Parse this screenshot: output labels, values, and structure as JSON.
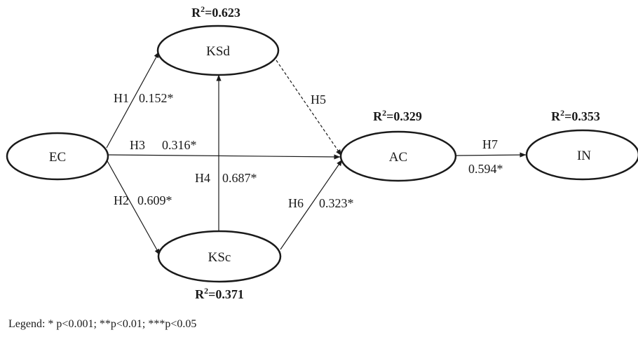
{
  "nodes": {
    "ksd": {
      "label": "KSd",
      "r2_prefix": "R",
      "r2_sup": "2",
      "r2_value": "=0.623"
    },
    "ec": {
      "label": "EC"
    },
    "ac": {
      "label": "AC",
      "r2_prefix": "R",
      "r2_sup": "2",
      "r2_value": "=0.329"
    },
    "in": {
      "label": "IN",
      "r2_prefix": "R",
      "r2_sup": "2",
      "r2_value": "=0.353"
    },
    "ksc": {
      "label": "KSc",
      "r2_prefix": "R",
      "r2_sup": "2",
      "r2_value": "=0.371"
    }
  },
  "paths": [
    {
      "id": "h1",
      "from": "EC",
      "to": "KSd",
      "hypothesis": "H1",
      "coefficient": "0.152*",
      "style": "solid"
    },
    {
      "id": "h2",
      "from": "EC",
      "to": "KSc",
      "hypothesis": "H2",
      "coefficient": "0.609*",
      "style": "solid"
    },
    {
      "id": "h3",
      "from": "EC",
      "to": "AC",
      "hypothesis": "H3",
      "coefficient": "0.316*",
      "style": "solid"
    },
    {
      "id": "h4",
      "from": "KSc",
      "to": "KSd",
      "hypothesis": "H4",
      "coefficient": "0.687*",
      "style": "solid"
    },
    {
      "id": "h5",
      "from": "KSd",
      "to": "AC",
      "hypothesis": "H5",
      "coefficient": "",
      "style": "dashed"
    },
    {
      "id": "h6",
      "from": "KSc",
      "to": "AC",
      "hypothesis": "H6",
      "coefficient": "0.323*",
      "style": "solid"
    },
    {
      "id": "h7",
      "from": "AC",
      "to": "IN",
      "hypothesis": "H7",
      "coefficient": "0.594*",
      "style": "solid"
    }
  ],
  "legend": {
    "text": "Legend: * p<0.001; **p<0.01; ***p<0.05"
  }
}
